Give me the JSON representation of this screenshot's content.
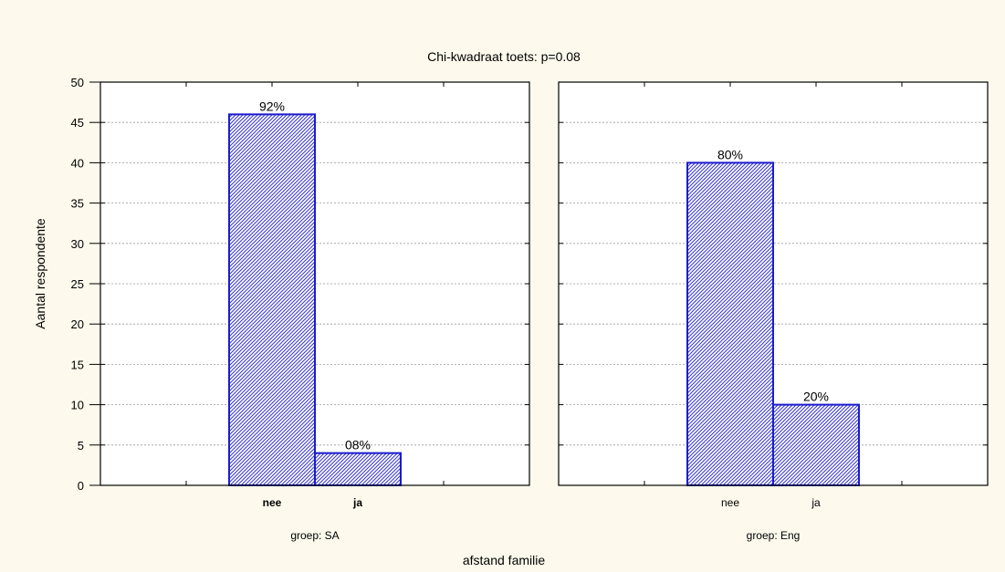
{
  "chart_data": {
    "type": "bar",
    "title": "Chi-kwadraat toets: p=0.08",
    "xlabel": "afstand familie",
    "ylabel": "Aantal respondente",
    "ylim": [
      0,
      50
    ],
    "yticks": [
      0,
      5,
      10,
      15,
      20,
      25,
      30,
      35,
      40,
      45,
      50
    ],
    "grid": true,
    "colors": {
      "bar_stroke": "#1c1ccc",
      "bar_hatch": "#3b3bd6",
      "bar_fill": "#ffffff",
      "background": "#fdf9ec",
      "plot_bg": "#ffffff"
    },
    "panels": [
      {
        "panel_label": "groep: SA",
        "categories": [
          "nee",
          "ja"
        ],
        "values": [
          46,
          4
        ],
        "data_labels": [
          "92%",
          "08%"
        ]
      },
      {
        "panel_label": "groep: Eng",
        "categories": [
          "nee",
          "ja"
        ],
        "values": [
          40,
          10
        ],
        "data_labels": [
          "80%",
          "20%"
        ]
      }
    ]
  }
}
